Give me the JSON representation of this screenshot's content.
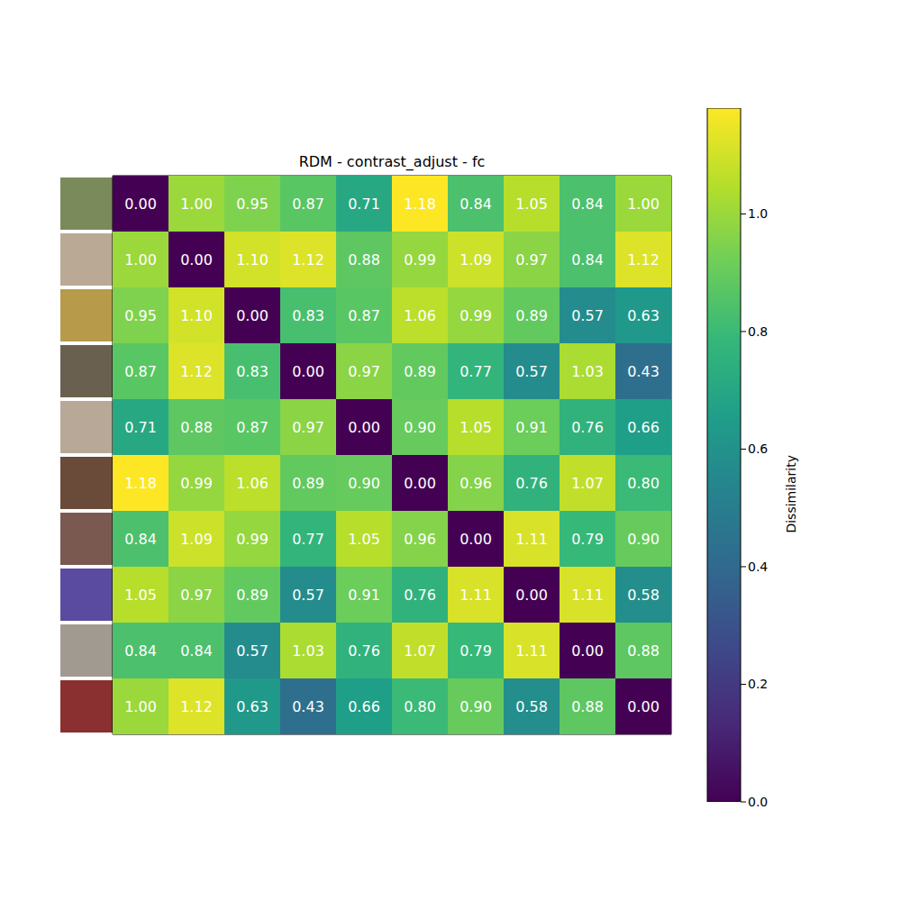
{
  "chart_data": {
    "type": "heatmap",
    "title": "RDM - contrast_adjust - fc",
    "cells": [
      [
        0.0,
        1.0,
        0.95,
        0.87,
        0.71,
        1.18,
        0.84,
        1.05,
        0.84,
        1.0
      ],
      [
        1.0,
        0.0,
        1.1,
        1.12,
        0.88,
        0.99,
        1.09,
        0.97,
        0.84,
        1.12
      ],
      [
        0.95,
        1.1,
        0.0,
        0.83,
        0.87,
        1.06,
        0.99,
        0.89,
        0.57,
        0.63
      ],
      [
        0.87,
        1.12,
        0.83,
        0.0,
        0.97,
        0.89,
        0.77,
        0.57,
        1.03,
        0.43
      ],
      [
        0.71,
        0.88,
        0.87,
        0.97,
        0.0,
        0.9,
        1.05,
        0.91,
        0.76,
        0.66
      ],
      [
        1.18,
        0.99,
        1.06,
        0.89,
        0.9,
        0.0,
        0.96,
        0.76,
        1.07,
        0.8
      ],
      [
        0.84,
        1.09,
        0.99,
        0.77,
        1.05,
        0.96,
        0.0,
        1.11,
        0.79,
        0.9
      ],
      [
        1.05,
        0.97,
        0.89,
        0.57,
        0.91,
        0.76,
        1.11,
        0.0,
        1.11,
        0.58
      ],
      [
        0.84,
        0.84,
        0.57,
        1.03,
        0.76,
        1.07,
        0.79,
        1.11,
        0.0,
        0.88
      ],
      [
        1.0,
        1.12,
        0.63,
        0.43,
        0.66,
        0.8,
        0.9,
        0.58,
        0.88,
        0.0
      ]
    ],
    "value_labels": [
      [
        "0.00",
        "1.00",
        "0.95",
        "0.87",
        "0.71",
        "1.18",
        "0.84",
        "1.05",
        "0.84",
        "1.00"
      ],
      [
        "1.00",
        "0.00",
        "1.10",
        "1.12",
        "0.88",
        "0.99",
        "1.09",
        "0.97",
        "0.84",
        "1.12"
      ],
      [
        "0.95",
        "1.10",
        "0.00",
        "0.83",
        "0.87",
        "1.06",
        "0.99",
        "0.89",
        "0.57",
        "0.63"
      ],
      [
        "0.87",
        "1.12",
        "0.83",
        "0.00",
        "0.97",
        "0.89",
        "0.77",
        "0.57",
        "1.03",
        "0.43"
      ],
      [
        "0.71",
        "0.88",
        "0.87",
        "0.97",
        "0.00",
        "0.90",
        "1.05",
        "0.91",
        "0.76",
        "0.66"
      ],
      [
        "1.18",
        "0.99",
        "1.06",
        "0.89",
        "0.90",
        "0.00",
        "0.96",
        "0.76",
        "1.07",
        "0.80"
      ],
      [
        "0.84",
        "1.09",
        "0.99",
        "0.77",
        "1.05",
        "0.96",
        "0.00",
        "1.11",
        "0.79",
        "0.90"
      ],
      [
        "1.05",
        "0.97",
        "0.89",
        "0.57",
        "0.91",
        "0.76",
        "1.11",
        "0.00",
        "1.11",
        "0.58"
      ],
      [
        "0.84",
        "0.84",
        "0.57",
        "1.03",
        "0.76",
        "1.07",
        "0.79",
        "1.11",
        "0.00",
        "0.88"
      ],
      [
        "1.00",
        "1.12",
        "0.63",
        "0.43",
        "0.66",
        "0.80",
        "0.90",
        "0.58",
        "0.88",
        "0.00"
      ]
    ],
    "xlim": [
      -0.5,
      9.5
    ],
    "ylim": [
      9.5,
      -0.5
    ],
    "tick_labels": false,
    "data_labels": true,
    "colorbar": {
      "label": "Dissimilarity",
      "range": [
        0,
        1.18
      ],
      "ticks": [
        {
          "value": 0,
          "label": "0.0"
        },
        {
          "value": 0.2,
          "label": "0.2"
        },
        {
          "value": 0.4,
          "label": "0.4"
        },
        {
          "value": 0.6,
          "label": "0.6"
        },
        {
          "value": 0.8,
          "label": "0.8"
        },
        {
          "value": 1.0,
          "label": "1.0"
        }
      ]
    }
  }
}
